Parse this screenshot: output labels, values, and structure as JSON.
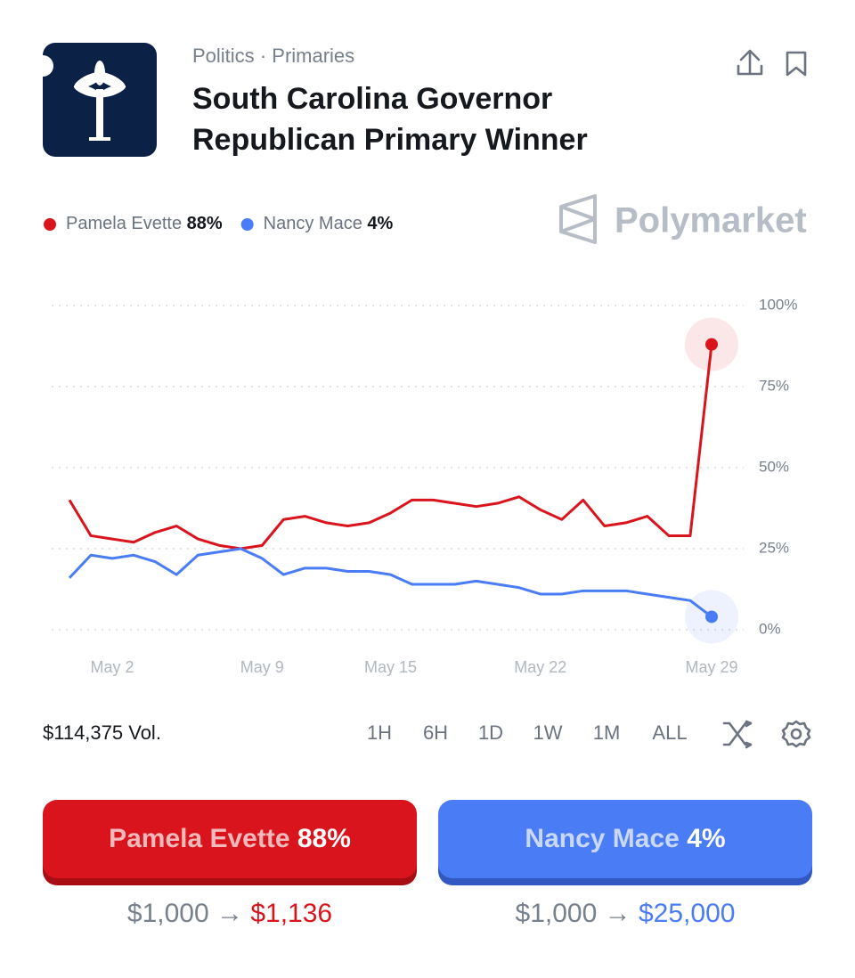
{
  "header": {
    "breadcrumbs": [
      "Politics",
      "Primaries"
    ],
    "separator": "·",
    "title_lines": [
      "South Carolina Governor",
      "Republican Primary Winner"
    ]
  },
  "brand": "Polymarket",
  "chart_data": {
    "type": "line",
    "categories": [
      null,
      null,
      "May 2",
      null,
      null,
      null,
      null,
      null,
      null,
      "May 9",
      null,
      null,
      null,
      null,
      null,
      "May 15",
      null,
      null,
      null,
      null,
      null,
      null,
      "May 22",
      null,
      null,
      null,
      null,
      null,
      null,
      null,
      "May 29"
    ],
    "series": [
      {
        "name": "Pamela Evette",
        "color": "#d9141c",
        "last_label": "88%",
        "values": [
          40,
          29,
          28,
          27,
          30,
          32,
          28,
          26,
          25,
          26,
          34,
          35,
          33,
          32,
          33,
          36,
          40,
          40,
          39,
          38,
          39,
          41,
          37,
          34,
          40,
          32,
          33,
          35,
          29,
          29,
          88
        ]
      },
      {
        "name": "Nancy Mace",
        "color": "#4a7cf5",
        "last_label": "4%",
        "values": [
          16,
          23,
          22,
          23,
          21,
          17,
          23,
          24,
          25,
          22,
          17,
          19,
          19,
          18,
          18,
          17,
          14,
          14,
          14,
          15,
          14,
          13,
          11,
          11,
          12,
          12,
          12,
          11,
          10,
          9,
          4
        ]
      }
    ],
    "ylim": [
      0,
      100
    ],
    "yticks": [
      {
        "value": 0,
        "label": "0%"
      },
      {
        "value": 25,
        "label": "25%"
      },
      {
        "value": 50,
        "label": "50%"
      },
      {
        "value": 75,
        "label": "75%"
      },
      {
        "value": 100,
        "label": "100%"
      }
    ],
    "grid": true
  },
  "volume": "$114,375 Vol.",
  "time_buttons": [
    "1H",
    "6H",
    "1D",
    "1W",
    "1M",
    "ALL"
  ],
  "outcomes": [
    {
      "stake": "$1,000",
      "arrow": "→",
      "payout": "$1,136"
    },
    {
      "stake": "$1,000",
      "arrow": "→",
      "payout": "$25,000"
    }
  ]
}
